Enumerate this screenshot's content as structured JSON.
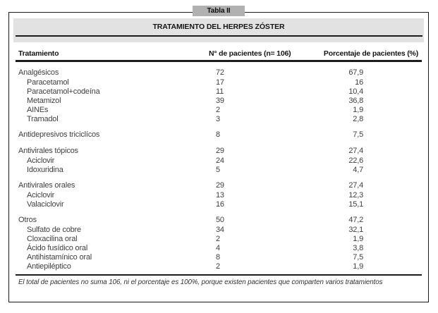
{
  "tab_label": "Tabla II",
  "title": "TRATAMIENTO DEL HERPES ZÓSTER",
  "header": {
    "treatment": "Tratamiento",
    "patients": "N° de pacientes (n= 106)",
    "percent": "Porcentaje de pacientes (%)"
  },
  "groups": [
    {
      "name": "Analgésicos",
      "patients": "72",
      "percent": "67,9",
      "items": [
        {
          "name": "Paracetamol",
          "patients": "17",
          "percent": "16"
        },
        {
          "name": "Paracetamol+codeína",
          "patients": "11",
          "percent": "10,4"
        },
        {
          "name": "Metamizol",
          "patients": "39",
          "percent": "36,8"
        },
        {
          "name": "AINEs",
          "patients": "2",
          "percent": "1,9"
        },
        {
          "name": "Tramadol",
          "patients": "3",
          "percent": "2,8"
        }
      ]
    },
    {
      "name": "Antidepresivos triciclícos",
      "patients": "8",
      "percent": "7,5",
      "items": []
    },
    {
      "name": "Antivirales tópicos",
      "patients": "29",
      "percent": "27,4",
      "items": [
        {
          "name": "Aciclovir",
          "patients": "24",
          "percent": "22,6"
        },
        {
          "name": "Idoxuridina",
          "patients": "5",
          "percent": "4,7"
        }
      ]
    },
    {
      "name": "Antivirales orales",
      "patients": "29",
      "percent": "27,4",
      "items": [
        {
          "name": "Aciclovir",
          "patients": "13",
          "percent": "12,3"
        },
        {
          "name": "Valaciclovir",
          "patients": "16",
          "percent": "15,1"
        }
      ]
    },
    {
      "name": "Otros",
      "patients": "50",
      "percent": "47,2",
      "items": [
        {
          "name": "Sulfato de cobre",
          "patients": "34",
          "percent": "32,1"
        },
        {
          "name": "Cloxacilina oral",
          "patients": "2",
          "percent": "1,9"
        },
        {
          "name": "Ácido fusídico oral",
          "patients": "4",
          "percent": "3,8"
        },
        {
          "name": "Antihistamínico oral",
          "patients": "8",
          "percent": "7,5"
        },
        {
          "name": "Antiepiléptico",
          "patients": "2",
          "percent": "1,9"
        }
      ]
    }
  ],
  "footnote": "El total de pacientes no suma 106, ni el porcentaje es 100%, porque existen pacientes que comparten varios tratamientos",
  "colors": {
    "tab_bg": "#b1b1b1",
    "title_band_bg": "#e2e2e2",
    "rule": "#1c1c1c",
    "body_text": "#3f3f3f",
    "heading_text": "#151515"
  }
}
